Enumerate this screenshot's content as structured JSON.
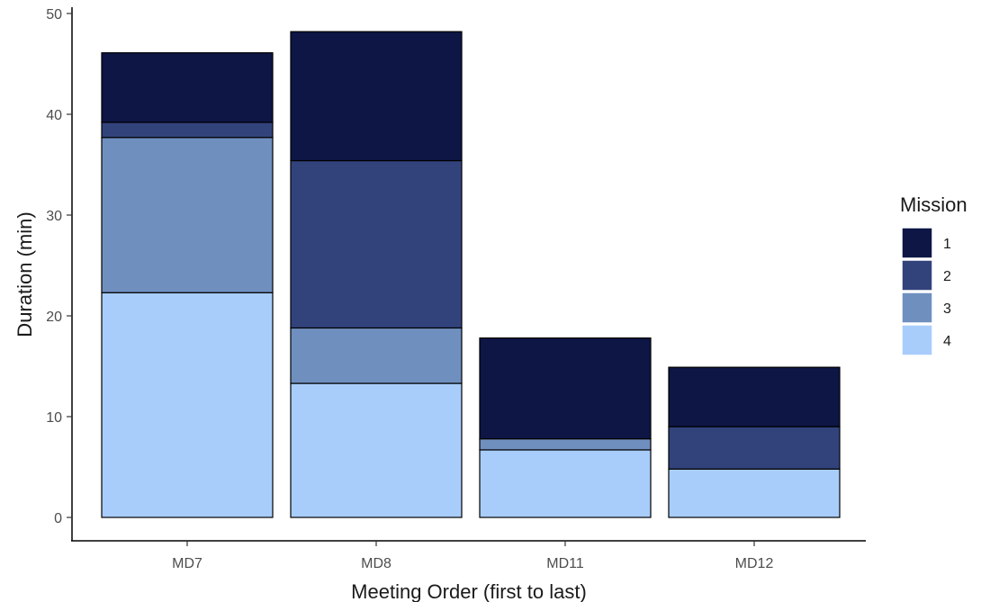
{
  "chart_data": {
    "type": "bar",
    "stacked": true,
    "xlabel": "Meeting Order (first to last)",
    "ylabel": "Duration (min)",
    "categories": [
      "MD7",
      "MD8",
      "MD11",
      "MD12"
    ],
    "ylim": [
      0,
      50
    ],
    "yticks": [
      0,
      10,
      20,
      30,
      40,
      50
    ],
    "legend": {
      "title": "Mission",
      "position": "right"
    },
    "series": [
      {
        "name": "1",
        "color": "#0d1645",
        "values": [
          6.9,
          12.8,
          10.0,
          5.9
        ]
      },
      {
        "name": "2",
        "color": "#32437c",
        "values": [
          1.5,
          16.6,
          0.0,
          4.2
        ]
      },
      {
        "name": "3",
        "color": "#6f8fbf",
        "values": [
          15.4,
          5.5,
          1.1,
          0.0
        ]
      },
      {
        "name": "4",
        "color": "#a8cdfb",
        "values": [
          22.3,
          13.3,
          6.7,
          4.8
        ]
      }
    ],
    "grid": false
  }
}
